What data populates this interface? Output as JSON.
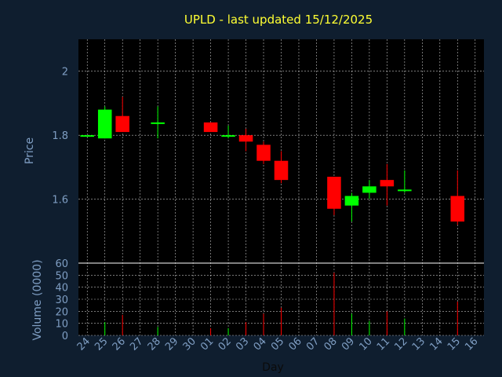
{
  "chart_data": {
    "type": "candlestick",
    "title": "UPLD - last updated 15/12/2025",
    "ylabel": "Price",
    "volume_label": "Volume (0000)",
    "xlabel": "Day",
    "ylim": [
      1.4,
      2.1
    ],
    "yticks": [
      "1.6",
      "1.8",
      "2"
    ],
    "vol_ylim": [
      0,
      60
    ],
    "vol_ticks": [
      "0",
      "10",
      "20",
      "30",
      "40",
      "50",
      "60"
    ],
    "x_ticks": [
      "24",
      "25",
      "26",
      "27",
      "28",
      "29",
      "30",
      "01",
      "02",
      "03",
      "04",
      "05",
      "06",
      "07",
      "08",
      "09",
      "10",
      "11",
      "12",
      "13",
      "14",
      "15",
      "16"
    ],
    "colors": {
      "up": "#00ff00",
      "down": "#ff0000",
      "grid": "#ffffff",
      "axis": "#7f9ec3",
      "title": "#ffff33",
      "background": "#0f1e2f",
      "plot_bg": "#000000"
    },
    "candles": [
      {
        "day": "24",
        "open": 1.8,
        "high": 1.8,
        "low": 1.8,
        "close": 1.8,
        "volume": 0
      },
      {
        "day": "25",
        "open": 1.79,
        "high": 1.89,
        "low": 1.79,
        "close": 1.88,
        "volume": 11
      },
      {
        "day": "26",
        "open": 1.86,
        "high": 1.92,
        "low": 1.81,
        "close": 1.81,
        "volume": 17
      },
      {
        "day": "28",
        "open": 1.84,
        "high": 1.89,
        "low": 1.79,
        "close": 1.84,
        "volume": 7
      },
      {
        "day": "01",
        "open": 1.84,
        "high": 1.84,
        "low": 1.81,
        "close": 1.81,
        "volume": 6
      },
      {
        "day": "02",
        "open": 1.8,
        "high": 1.83,
        "low": 1.79,
        "close": 1.8,
        "volume": 6
      },
      {
        "day": "03",
        "open": 1.8,
        "high": 1.82,
        "low": 1.75,
        "close": 1.78,
        "volume": 11
      },
      {
        "day": "04",
        "open": 1.77,
        "high": 1.78,
        "low": 1.71,
        "close": 1.72,
        "volume": 18
      },
      {
        "day": "05",
        "open": 1.72,
        "high": 1.75,
        "low": 1.65,
        "close": 1.66,
        "volume": 23
      },
      {
        "day": "08",
        "open": 1.67,
        "high": 1.67,
        "low": 1.55,
        "close": 1.57,
        "volume": 52
      },
      {
        "day": "09",
        "open": 1.58,
        "high": 1.62,
        "low": 1.53,
        "close": 1.61,
        "volume": 18
      },
      {
        "day": "10",
        "open": 1.62,
        "high": 1.66,
        "low": 1.6,
        "close": 1.64,
        "volume": 12
      },
      {
        "day": "11",
        "open": 1.66,
        "high": 1.71,
        "low": 1.58,
        "close": 1.64,
        "volume": 20
      },
      {
        "day": "12",
        "open": 1.63,
        "high": 1.69,
        "low": 1.62,
        "close": 1.63,
        "volume": 14
      },
      {
        "day": "15",
        "open": 1.61,
        "high": 1.69,
        "low": 1.52,
        "close": 1.53,
        "volume": 28
      }
    ]
  }
}
